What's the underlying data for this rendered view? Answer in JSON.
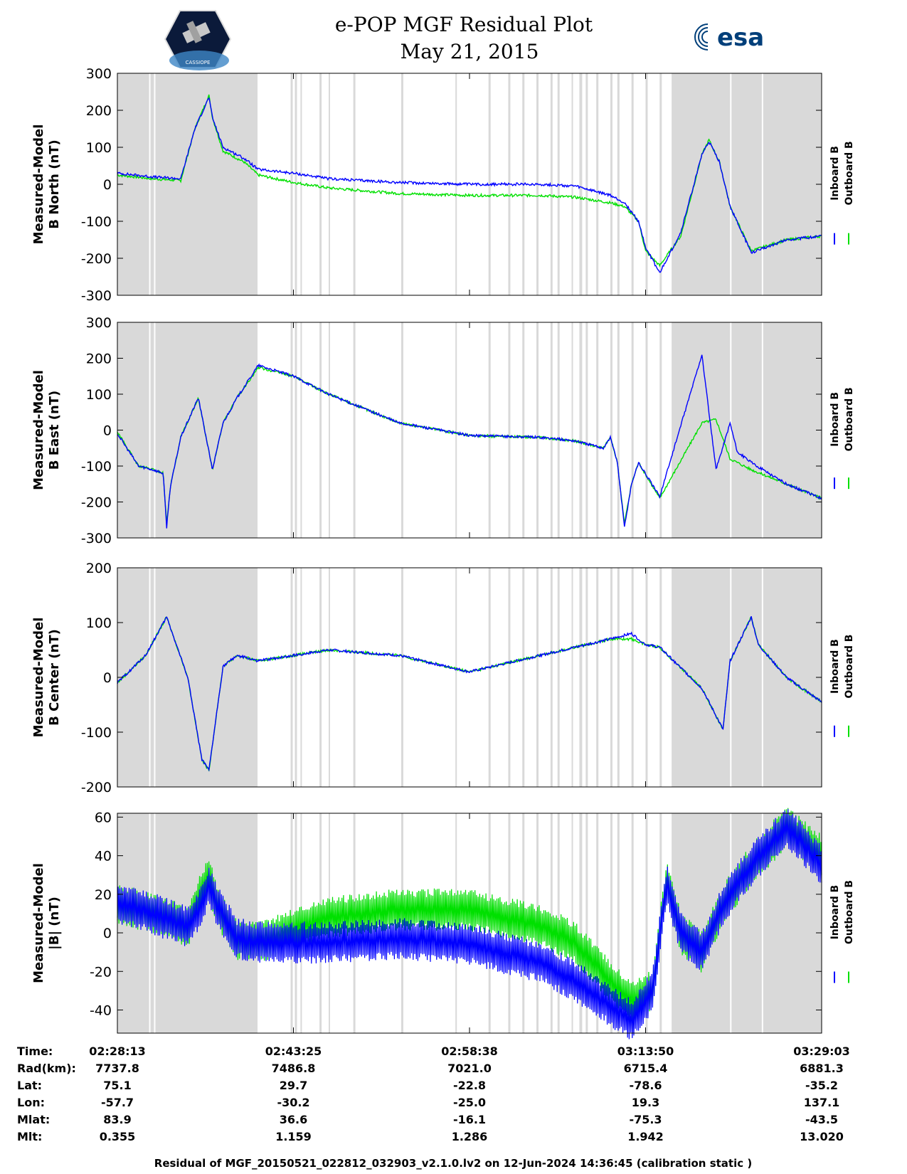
{
  "header": {
    "title_line1": "e-POP MGF Residual Plot",
    "title_line2": "May 21, 2015",
    "left_logo_text": "CASSIOPE",
    "right_logo_text": "esa"
  },
  "chart_data": [
    {
      "type": "line",
      "ylabel_line1": "Measured-Model",
      "ylabel_line2": "B North (nT)",
      "ylim": [
        -300,
        300
      ],
      "yticks": [
        300,
        200,
        100,
        0,
        -100,
        -200,
        -300
      ],
      "series": [
        {
          "name": "Outboard B",
          "color": "#00e000",
          "t": [
            0,
            0.05,
            0.09,
            0.11,
            0.13,
            0.135,
            0.15,
            0.18,
            0.2,
            0.25,
            0.3,
            0.4,
            0.5,
            0.6,
            0.65,
            0.7,
            0.72,
            0.74,
            0.75,
            0.77,
            0.8,
            0.83,
            0.84,
            0.855,
            0.87,
            0.9,
            0.95,
            1.0
          ],
          "v": [
            25,
            15,
            10,
            150,
            240,
            180,
            90,
            60,
            25,
            5,
            -10,
            -25,
            -30,
            -30,
            -35,
            -50,
            -60,
            -100,
            -180,
            -220,
            -140,
            80,
            120,
            60,
            -60,
            -180,
            -150,
            -140
          ]
        },
        {
          "name": "Inboard B",
          "color": "#0000ff",
          "t": [
            0,
            0.05,
            0.09,
            0.11,
            0.13,
            0.135,
            0.15,
            0.18,
            0.2,
            0.25,
            0.3,
            0.4,
            0.5,
            0.6,
            0.65,
            0.7,
            0.72,
            0.74,
            0.75,
            0.77,
            0.8,
            0.83,
            0.84,
            0.855,
            0.87,
            0.9,
            0.95,
            1.0
          ],
          "v": [
            30,
            20,
            15,
            150,
            235,
            180,
            100,
            70,
            40,
            30,
            15,
            5,
            0,
            0,
            -5,
            -30,
            -50,
            -100,
            -170,
            -240,
            -130,
            80,
            115,
            60,
            -60,
            -185,
            -150,
            -140
          ]
        }
      ]
    },
    {
      "type": "line",
      "ylabel_line1": "Measured-Model",
      "ylabel_line2": "B East (nT)",
      "ylim": [
        -300,
        300
      ],
      "yticks": [
        300,
        200,
        100,
        0,
        -100,
        -200,
        -300
      ],
      "series": [
        {
          "name": "Outboard B",
          "color": "#00e000",
          "t": [
            0,
            0.03,
            0.05,
            0.065,
            0.07,
            0.075,
            0.09,
            0.115,
            0.135,
            0.15,
            0.17,
            0.2,
            0.25,
            0.3,
            0.4,
            0.5,
            0.6,
            0.65,
            0.69,
            0.7,
            0.71,
            0.72,
            0.73,
            0.74,
            0.77,
            0.83,
            0.85,
            0.87,
            0.88,
            0.9,
            0.95,
            1.0
          ],
          "v": [
            -5,
            -100,
            -110,
            -120,
            -260,
            -160,
            -20,
            90,
            -110,
            20,
            90,
            175,
            150,
            100,
            20,
            -15,
            -20,
            -30,
            -50,
            -20,
            -90,
            -260,
            -150,
            -90,
            -190,
            20,
            30,
            -80,
            -90,
            -110,
            -150,
            -190
          ]
        },
        {
          "name": "Inboard B",
          "color": "#0000ff",
          "t": [
            0,
            0.03,
            0.05,
            0.065,
            0.07,
            0.075,
            0.09,
            0.115,
            0.135,
            0.15,
            0.17,
            0.2,
            0.25,
            0.3,
            0.4,
            0.5,
            0.6,
            0.65,
            0.69,
            0.7,
            0.71,
            0.72,
            0.73,
            0.74,
            0.77,
            0.83,
            0.85,
            0.87,
            0.88,
            0.9,
            0.95,
            1.0
          ],
          "v": [
            -10,
            -100,
            -110,
            -120,
            -270,
            -160,
            -20,
            90,
            -110,
            20,
            90,
            180,
            150,
            100,
            20,
            -15,
            -20,
            -30,
            -50,
            -20,
            -90,
            -270,
            -150,
            -90,
            -185,
            210,
            -110,
            20,
            -60,
            -90,
            -150,
            -190
          ]
        }
      ]
    },
    {
      "type": "line",
      "ylabel_line1": "Measured-Model",
      "ylabel_line2": "B Center (nT)",
      "ylim": [
        -200,
        200
      ],
      "yticks": [
        200,
        100,
        0,
        -100,
        -200
      ],
      "series": [
        {
          "name": "Outboard B",
          "color": "#00e000",
          "t": [
            0,
            0.04,
            0.07,
            0.1,
            0.12,
            0.13,
            0.15,
            0.17,
            0.2,
            0.3,
            0.4,
            0.5,
            0.6,
            0.7,
            0.73,
            0.75,
            0.77,
            0.83,
            0.86,
            0.87,
            0.9,
            0.91,
            0.95,
            1.0
          ],
          "v": [
            -10,
            40,
            110,
            0,
            -150,
            -170,
            20,
            40,
            30,
            50,
            40,
            10,
            40,
            70,
            70,
            60,
            55,
            -20,
            -95,
            30,
            110,
            60,
            0,
            -45
          ]
        },
        {
          "name": "Inboard B",
          "color": "#0000ff",
          "t": [
            0,
            0.04,
            0.07,
            0.1,
            0.12,
            0.13,
            0.15,
            0.17,
            0.2,
            0.3,
            0.4,
            0.5,
            0.6,
            0.7,
            0.73,
            0.75,
            0.77,
            0.83,
            0.86,
            0.87,
            0.9,
            0.91,
            0.95,
            1.0
          ],
          "v": [
            -10,
            40,
            110,
            0,
            -150,
            -170,
            20,
            40,
            30,
            50,
            40,
            10,
            40,
            70,
            80,
            60,
            55,
            -20,
            -95,
            30,
            110,
            60,
            0,
            -45
          ]
        }
      ]
    },
    {
      "type": "line",
      "ylabel_line1": "Measured-Model",
      "ylabel_line2": "|B| (nT)",
      "ylim": [
        -52,
        62
      ],
      "yticks": [
        60,
        40,
        20,
        0,
        -20,
        -40
      ],
      "band": 11,
      "series": [
        {
          "name": "Outboard B",
          "color": "#00e000",
          "t": [
            0,
            0.05,
            0.1,
            0.12,
            0.13,
            0.14,
            0.17,
            0.2,
            0.25,
            0.3,
            0.4,
            0.5,
            0.6,
            0.65,
            0.7,
            0.73,
            0.76,
            0.78,
            0.8,
            0.83,
            0.86,
            0.9,
            0.95,
            1.0
          ],
          "v": [
            15,
            10,
            3,
            22,
            30,
            15,
            -3,
            -5,
            2,
            8,
            12,
            12,
            4,
            -5,
            -25,
            -35,
            -30,
            28,
            0,
            -10,
            15,
            35,
            55,
            40
          ]
        },
        {
          "name": "Inboard B",
          "color": "#0000ff",
          "t": [
            0,
            0.05,
            0.1,
            0.12,
            0.13,
            0.14,
            0.17,
            0.2,
            0.25,
            0.3,
            0.4,
            0.5,
            0.6,
            0.65,
            0.7,
            0.73,
            0.76,
            0.78,
            0.8,
            0.83,
            0.86,
            0.9,
            0.95,
            1.0
          ],
          "v": [
            15,
            10,
            3,
            15,
            25,
            15,
            -3,
            -5,
            -5,
            -5,
            -3,
            -6,
            -15,
            -25,
            -38,
            -45,
            -30,
            25,
            0,
            -10,
            15,
            35,
            55,
            35
          ]
        }
      ]
    }
  ],
  "data_gaps_fraction": [
    [
      0,
      0.045
    ],
    [
      0.047,
      0.052
    ],
    [
      0.054,
      0.199
    ],
    [
      0.246,
      0.249
    ],
    [
      0.252,
      0.255
    ],
    [
      0.26,
      0.262
    ],
    [
      0.287,
      0.29
    ],
    [
      0.3,
      0.302
    ],
    [
      0.335,
      0.338
    ],
    [
      0.403,
      0.406
    ],
    [
      0.48,
      0.482
    ],
    [
      0.527,
      0.53
    ],
    [
      0.555,
      0.558
    ],
    [
      0.575,
      0.578
    ],
    [
      0.595,
      0.598
    ],
    [
      0.615,
      0.618
    ],
    [
      0.625,
      0.628
    ],
    [
      0.645,
      0.647
    ],
    [
      0.656,
      0.66
    ],
    [
      0.665,
      0.668
    ],
    [
      0.68,
      0.683
    ],
    [
      0.7,
      0.703
    ],
    [
      0.71,
      0.713
    ],
    [
      0.71,
      0.712
    ],
    [
      0.73,
      0.733
    ],
    [
      0.75,
      0.753
    ],
    [
      0.77,
      0.773
    ],
    [
      0.787,
      0.87
    ],
    [
      0.872,
      0.915
    ],
    [
      0.917,
      1.0
    ]
  ],
  "legend": {
    "inboard": "Inboard B",
    "outboard": "Outboard B",
    "inboard_color": "#0000ff",
    "outboard_color": "#00e000"
  },
  "time_table": {
    "rows": [
      {
        "label": "Time:",
        "values": [
          "02:28:13",
          "02:43:25",
          "02:58:38",
          "03:13:50",
          "03:29:03"
        ]
      },
      {
        "label": "Rad(km):",
        "values": [
          "7737.8",
          "7486.8",
          "7021.0",
          "6715.4",
          "6881.3"
        ]
      },
      {
        "label": "Lat:",
        "values": [
          "75.1",
          "29.7",
          "-22.8",
          "-78.6",
          "-35.2"
        ]
      },
      {
        "label": "Lon:",
        "values": [
          "-57.7",
          "-30.2",
          "-25.0",
          "19.3",
          "137.1"
        ]
      },
      {
        "label": "Mlat:",
        "values": [
          "83.9",
          "36.6",
          "-16.1",
          "-75.3",
          "-43.5"
        ]
      },
      {
        "label": "Mlt:",
        "values": [
          "0.355",
          "1.159",
          "1.286",
          "1.942",
          "13.020"
        ]
      }
    ]
  },
  "footer": "Residual of MGF_20150521_022812_032903_v2.1.0.lv2 on 12-Jun-2024 14:36:45 (calibration static )"
}
